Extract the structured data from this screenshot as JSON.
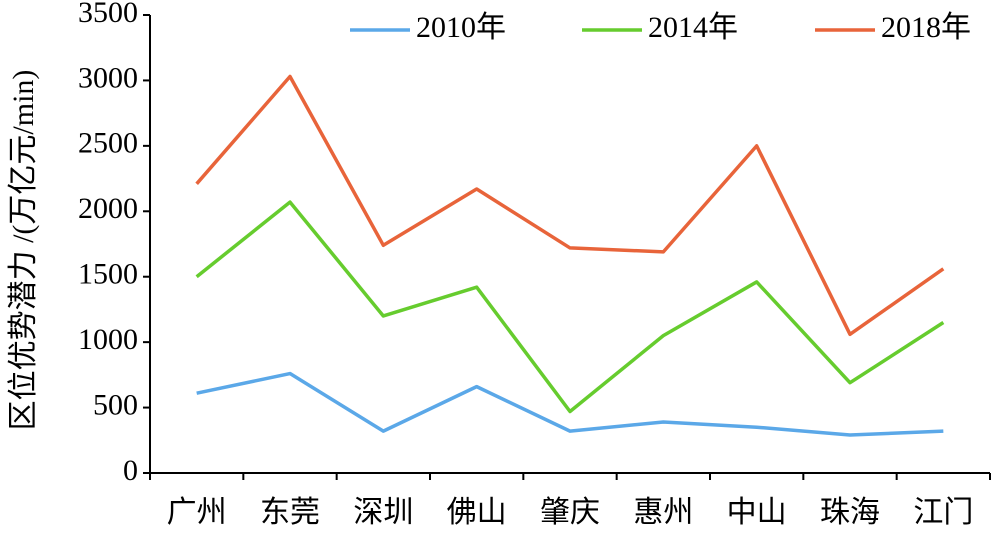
{
  "chart_data": {
    "type": "line",
    "y_label": "区位优势潜力 /(万亿元/min)",
    "categories": [
      "广州",
      "东莞",
      "深圳",
      "佛山",
      "肇庆",
      "惠州",
      "中山",
      "珠海",
      "江门"
    ],
    "series": [
      {
        "name": "2010年",
        "color": "#5ba8e8",
        "values": [
          610,
          760,
          320,
          660,
          320,
          390,
          350,
          290,
          320
        ]
      },
      {
        "name": "2014年",
        "color": "#66cc2e",
        "values": [
          1500,
          2070,
          1200,
          1420,
          470,
          1050,
          1460,
          690,
          1150
        ]
      },
      {
        "name": "2018年",
        "color": "#e8643a",
        "values": [
          2210,
          3030,
          1740,
          2170,
          1720,
          1690,
          2500,
          1060,
          1560
        ]
      }
    ],
    "ylim": [
      0,
      3500
    ],
    "yticks": [
      0,
      500,
      1000,
      1500,
      2000,
      2500,
      3000,
      3500
    ],
    "grid": false,
    "legend": "top"
  }
}
